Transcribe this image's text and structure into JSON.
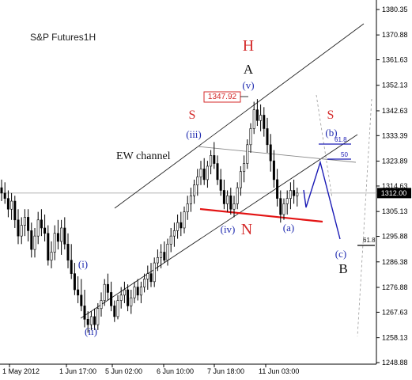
{
  "chart_data": {
    "type": "candlestick",
    "title": "S&P Futures1H",
    "ylim": [
      1245.0,
      1385.0
    ],
    "y_ticks": [
      "1380.35",
      "1370.88",
      "1361.63",
      "1352.13",
      "1342.63",
      "1333.39",
      "1323.89",
      "1314.63",
      "1305.13",
      "1295.88",
      "1286.38",
      "1276.88",
      "1267.63",
      "1258.13",
      "1248.88"
    ],
    "x_ticks": [
      "1 May 2012",
      "1 Jun 17:00",
      "5 Jun 02:00",
      "6 Jun 10:00",
      "7 Jun 18:00",
      "11 Jun 03:00"
    ],
    "x_tick_index": [
      10,
      82,
      140,
      205,
      270,
      335
    ],
    "current_price": "1312.00",
    "high_label": "1347.92",
    "colors": {
      "candles": "#000000",
      "channel": "#000000",
      "labels_red": "#d42a2a",
      "labels_blue": "#1f2bb0",
      "support_line": "#e31414",
      "projection": "#1a1ab5"
    },
    "annotations": {
      "H": "H",
      "A": "A",
      "v": "(v)",
      "iii": "(iii)",
      "iv": "(iv)",
      "i": "(i)",
      "ii": "(ii)",
      "a": "(a)",
      "b": "(b)",
      "c": "(c)",
      "B": "B",
      "N": "N",
      "S_left": "S",
      "S_right": "S",
      "ew_channel": "EW channel",
      "fib_618_top": "61.8",
      "fib_50": "50",
      "fib_618_bottom": "61.8"
    },
    "series": [
      {
        "values": [
          [
            1314,
            1317,
            1309,
            1312
          ],
          [
            1312,
            1316,
            1308,
            1310
          ],
          [
            1310,
            1313,
            1303,
            1306
          ],
          [
            1306,
            1312,
            1302,
            1309
          ],
          [
            1309,
            1311,
            1299,
            1302
          ],
          [
            1302,
            1306,
            1293,
            1296
          ],
          [
            1296,
            1303,
            1293,
            1300
          ],
          [
            1300,
            1306,
            1296,
            1303
          ],
          [
            1303,
            1306,
            1294,
            1298
          ],
          [
            1298,
            1301,
            1288,
            1291
          ],
          [
            1291,
            1299,
            1288,
            1296
          ],
          [
            1296,
            1305,
            1293,
            1302
          ],
          [
            1302,
            1306,
            1296,
            1299
          ],
          [
            1299,
            1304,
            1294,
            1297
          ],
          [
            1297,
            1300,
            1285,
            1287
          ],
          [
            1287,
            1294,
            1284,
            1290
          ],
          [
            1290,
            1300,
            1287,
            1297
          ],
          [
            1297,
            1302,
            1291,
            1294
          ],
          [
            1294,
            1302,
            1289,
            1299
          ],
          [
            1299,
            1303,
            1291,
            1293
          ],
          [
            1293,
            1297,
            1284,
            1287
          ],
          [
            1287,
            1293,
            1280,
            1282
          ],
          [
            1282,
            1286,
            1274,
            1276
          ],
          [
            1276,
            1281,
            1271,
            1274
          ],
          [
            1274,
            1280,
            1268,
            1270
          ],
          [
            1270,
            1276,
            1262,
            1265
          ],
          [
            1265,
            1268,
            1260,
            1263
          ],
          [
            1263,
            1268,
            1261,
            1266
          ],
          [
            1266,
            1269,
            1261,
            1263
          ],
          [
            1263,
            1271,
            1261,
            1269
          ],
          [
            1269,
            1275,
            1266,
            1272
          ],
          [
            1272,
            1280,
            1270,
            1278
          ],
          [
            1278,
            1282,
            1272,
            1275
          ],
          [
            1275,
            1279,
            1268,
            1270
          ],
          [
            1270,
            1272,
            1264,
            1266
          ],
          [
            1266,
            1274,
            1265,
            1272
          ],
          [
            1272,
            1277,
            1269,
            1274
          ],
          [
            1274,
            1279,
            1271,
            1276
          ],
          [
            1276,
            1278,
            1268,
            1270
          ],
          [
            1270,
            1276,
            1267,
            1273
          ],
          [
            1273,
            1279,
            1271,
            1277
          ],
          [
            1277,
            1280,
            1272,
            1274
          ],
          [
            1274,
            1279,
            1271,
            1277
          ],
          [
            1277,
            1282,
            1275,
            1280
          ],
          [
            1280,
            1285,
            1276,
            1282
          ],
          [
            1282,
            1286,
            1277,
            1279
          ],
          [
            1279,
            1288,
            1277,
            1286
          ],
          [
            1286,
            1291,
            1283,
            1288
          ],
          [
            1288,
            1293,
            1284,
            1290
          ],
          [
            1290,
            1294,
            1286,
            1287
          ],
          [
            1287,
            1295,
            1285,
            1293
          ],
          [
            1293,
            1299,
            1290,
            1296
          ],
          [
            1296,
            1301,
            1292,
            1298
          ],
          [
            1298,
            1304,
            1295,
            1301
          ],
          [
            1301,
            1305,
            1296,
            1299
          ],
          [
            1299,
            1307,
            1297,
            1305
          ],
          [
            1305,
            1311,
            1302,
            1308
          ],
          [
            1308,
            1314,
            1305,
            1311
          ],
          [
            1311,
            1317,
            1308,
            1315
          ],
          [
            1315,
            1321,
            1311,
            1318
          ],
          [
            1318,
            1324,
            1315,
            1321
          ],
          [
            1321,
            1325,
            1315,
            1317
          ],
          [
            1317,
            1324,
            1314,
            1322
          ],
          [
            1322,
            1328,
            1319,
            1326
          ],
          [
            1326,
            1331,
            1321,
            1323
          ],
          [
            1323,
            1326,
            1315,
            1317
          ],
          [
            1317,
            1321,
            1311,
            1313
          ],
          [
            1313,
            1317,
            1306,
            1308
          ],
          [
            1308,
            1313,
            1305,
            1311
          ],
          [
            1311,
            1314,
            1304,
            1306
          ],
          [
            1306,
            1311,
            1303,
            1308
          ],
          [
            1308,
            1316,
            1306,
            1314
          ],
          [
            1314,
            1322,
            1311,
            1320
          ],
          [
            1320,
            1326,
            1316,
            1323
          ],
          [
            1323,
            1332,
            1321,
            1330
          ],
          [
            1330,
            1338,
            1327,
            1336
          ],
          [
            1336,
            1346,
            1334,
            1343
          ],
          [
            1343,
            1347,
            1337,
            1339
          ],
          [
            1339,
            1345,
            1335,
            1341
          ],
          [
            1341,
            1344,
            1333,
            1336
          ],
          [
            1336,
            1340,
            1327,
            1330
          ],
          [
            1330,
            1334,
            1320,
            1324
          ],
          [
            1324,
            1328,
            1314,
            1317
          ],
          [
            1317,
            1321,
            1307,
            1310
          ],
          [
            1310,
            1313,
            1301,
            1304
          ],
          [
            1304,
            1310,
            1302,
            1308
          ],
          [
            1308,
            1313,
            1304,
            1310
          ],
          [
            1310,
            1316,
            1306,
            1313
          ],
          [
            1313,
            1317,
            1308,
            1311
          ],
          [
            1311,
            1314,
            1307,
            1312
          ]
        ]
      }
    ]
  }
}
